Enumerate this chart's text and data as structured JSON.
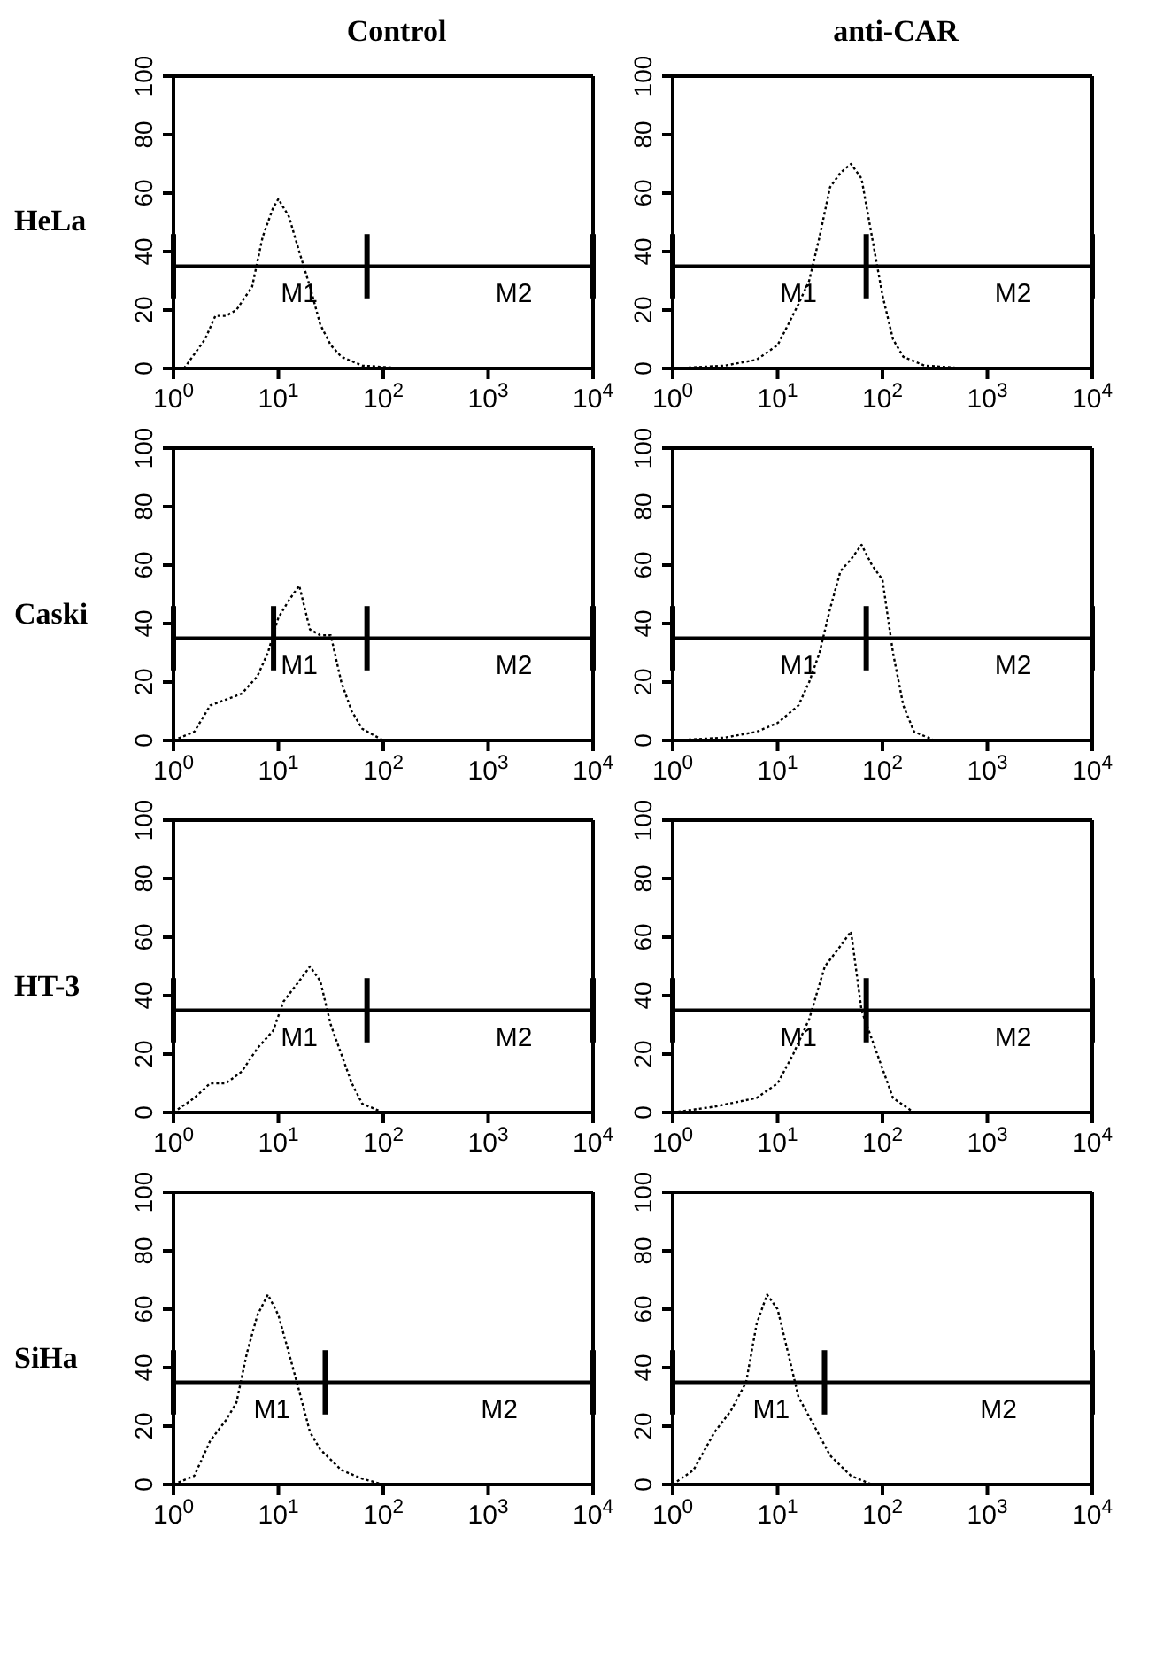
{
  "chart_data": [
    {
      "type": "line",
      "title": "Control",
      "ylabel": "HeLa",
      "log": "x",
      "xlim": [
        1,
        10000
      ],
      "ylim": [
        0,
        100
      ],
      "xticks": [
        {
          "value": 1,
          "label": "10$^{0}$"
        },
        {
          "value": 10,
          "label": "10$^{1}$"
        },
        {
          "value": 100,
          "label": "10$^{2}$"
        },
        {
          "value": 1000,
          "label": "10$^{3}$"
        },
        {
          "value": 10000,
          "label": "10$^{4}$"
        }
      ],
      "yticks": [
        0,
        20,
        40,
        60,
        80,
        100
      ],
      "line_style": "dotted",
      "marker": "none",
      "series": [
        {
          "color": "#000000",
          "x": [
            1.26,
            2,
            2.51,
            3.16,
            3.98,
            5.62,
            7.08,
            8.91,
            10,
            12.6,
            15.8,
            20,
            25.1,
            31.6,
            39.8,
            63.1,
            158,
            10000
          ],
          "values": [
            0,
            10,
            18,
            18,
            20,
            28,
            45,
            55,
            58,
            52,
            40,
            28,
            15,
            8,
            4,
            1,
            0,
            0
          ]
        }
      ],
      "ref_lines": [
        {
          "axis": "y",
          "value": 35
        },
        {
          "axis": "x",
          "value": 1
        },
        {
          "axis": "x",
          "value": 70
        },
        {
          "axis": "x",
          "value": 10000
        }
      ],
      "annotations": [
        "M1",
        "M2"
      ]
    },
    {
      "type": "line",
      "title": "anti-CAR",
      "log": "x",
      "xlim": [
        1,
        10000
      ],
      "ylim": [
        0,
        100
      ],
      "xticks": [
        {
          "value": 1,
          "label": "10$^{0}$"
        },
        {
          "value": 10,
          "label": "10$^{1}$"
        },
        {
          "value": 100,
          "label": "10$^{2}$"
        },
        {
          "value": 1000,
          "label": "10$^{3}$"
        },
        {
          "value": 10000,
          "label": "10$^{4}$"
        }
      ],
      "yticks": [
        0,
        20,
        40,
        60,
        80,
        100
      ],
      "line_style": "dotted",
      "marker": "none",
      "series": [
        {
          "color": "#000000",
          "x": [
            1,
            3.16,
            6.31,
            10,
            12.6,
            15.8,
            20,
            25.1,
            31.6,
            39.8,
            50.1,
            63.1,
            79.4,
            100,
            126,
            158,
            251,
            631,
            10000
          ],
          "values": [
            0,
            1,
            3,
            8,
            15,
            22,
            30,
            45,
            62,
            67,
            70,
            65,
            45,
            25,
            10,
            4,
            1,
            0,
            0
          ]
        }
      ],
      "ref_lines": [
        {
          "axis": "y",
          "value": 35
        },
        {
          "axis": "x",
          "value": 1
        },
        {
          "axis": "x",
          "value": 70
        },
        {
          "axis": "x",
          "value": 10000
        }
      ],
      "annotations": [
        "M1",
        "M2"
      ]
    },
    {
      "type": "line",
      "ylabel": "Caski",
      "log": "x",
      "xlim": [
        1,
        10000
      ],
      "ylim": [
        0,
        100
      ],
      "xticks": [
        {
          "value": 1,
          "label": "10$^{0}$"
        },
        {
          "value": 10,
          "label": "10$^{1}$"
        },
        {
          "value": 100,
          "label": "10$^{2}$"
        },
        {
          "value": 1000,
          "label": "10$^{3}$"
        },
        {
          "value": 10000,
          "label": "10$^{4}$"
        }
      ],
      "yticks": [
        0,
        20,
        40,
        60,
        80,
        100
      ],
      "line_style": "dotted",
      "marker": "none",
      "series": [
        {
          "color": "#000000",
          "x": [
            1,
            1.58,
            2.24,
            3.16,
            4.47,
            6.31,
            7.94,
            10,
            12.6,
            15.8,
            20,
            25.1,
            31.6,
            39.8,
            50.1,
            63.1,
            100,
            10000
          ],
          "values": [
            0,
            3,
            12,
            14,
            16,
            22,
            30,
            42,
            48,
            53,
            38,
            36,
            36,
            20,
            10,
            4,
            0,
            0
          ]
        }
      ],
      "ref_lines": [
        {
          "axis": "y",
          "value": 35
        },
        {
          "axis": "x",
          "value": 1
        },
        {
          "axis": "x",
          "value": 70
        },
        {
          "axis": "x",
          "value": 10000
        },
        {
          "axis": "x",
          "value": 9
        }
      ],
      "annotations": [
        "M1",
        "M2"
      ]
    },
    {
      "type": "line",
      "log": "x",
      "xlim": [
        1,
        10000
      ],
      "ylim": [
        0,
        100
      ],
      "xticks": [
        {
          "value": 1,
          "label": "10$^{0}$"
        },
        {
          "value": 10,
          "label": "10$^{1}$"
        },
        {
          "value": 100,
          "label": "10$^{2}$"
        },
        {
          "value": 1000,
          "label": "10$^{3}$"
        },
        {
          "value": 10000,
          "label": "10$^{4}$"
        }
      ],
      "yticks": [
        0,
        20,
        40,
        60,
        80,
        100
      ],
      "line_style": "dotted",
      "marker": "none",
      "series": [
        {
          "color": "#000000",
          "x": [
            1,
            3.16,
            6.31,
            10,
            15.8,
            20,
            25.1,
            31.6,
            39.8,
            50.1,
            63.1,
            79.4,
            100,
            126,
            158,
            200,
            316,
            10000
          ],
          "values": [
            0,
            1,
            3,
            6,
            12,
            20,
            30,
            45,
            58,
            62,
            67,
            60,
            55,
            30,
            12,
            3,
            0,
            0
          ]
        }
      ],
      "ref_lines": [
        {
          "axis": "y",
          "value": 35
        },
        {
          "axis": "x",
          "value": 1
        },
        {
          "axis": "x",
          "value": 70
        },
        {
          "axis": "x",
          "value": 10000
        }
      ],
      "annotations": [
        "M1",
        "M2"
      ]
    },
    {
      "type": "line",
      "ylabel": "HT-3",
      "log": "x",
      "xlim": [
        1,
        10000
      ],
      "ylim": [
        0,
        100
      ],
      "xticks": [
        {
          "value": 1,
          "label": "10$^{0}$"
        },
        {
          "value": 10,
          "label": "10$^{1}$"
        },
        {
          "value": 100,
          "label": "10$^{2}$"
        },
        {
          "value": 1000,
          "label": "10$^{3}$"
        },
        {
          "value": 10000,
          "label": "10$^{4}$"
        }
      ],
      "yticks": [
        0,
        20,
        40,
        60,
        80,
        100
      ],
      "line_style": "dotted",
      "marker": "none",
      "series": [
        {
          "color": "#000000",
          "x": [
            1,
            1.58,
            2.24,
            3.16,
            4.47,
            6.31,
            8.91,
            11.2,
            15.8,
            20,
            25.1,
            31.6,
            39.8,
            50.1,
            63.1,
            100,
            10000
          ],
          "values": [
            0,
            5,
            10,
            10,
            14,
            22,
            28,
            38,
            45,
            50,
            45,
            30,
            20,
            10,
            3,
            0,
            0
          ]
        }
      ],
      "ref_lines": [
        {
          "axis": "y",
          "value": 35
        },
        {
          "axis": "x",
          "value": 1
        },
        {
          "axis": "x",
          "value": 70
        },
        {
          "axis": "x",
          "value": 10000
        }
      ],
      "annotations": [
        "M1",
        "M2"
      ]
    },
    {
      "type": "line",
      "log": "x",
      "xlim": [
        1,
        10000
      ],
      "ylim": [
        0,
        100
      ],
      "xticks": [
        {
          "value": 1,
          "label": "10$^{0}$"
        },
        {
          "value": 10,
          "label": "10$^{1}$"
        },
        {
          "value": 100,
          "label": "10$^{2}$"
        },
        {
          "value": 1000,
          "label": "10$^{3}$"
        },
        {
          "value": 10000,
          "label": "10$^{4}$"
        }
      ],
      "yticks": [
        0,
        20,
        40,
        60,
        80,
        100
      ],
      "line_style": "dotted",
      "marker": "none",
      "series": [
        {
          "color": "#000000",
          "x": [
            1,
            2.51,
            6.31,
            10,
            14.1,
            20,
            28.2,
            39.8,
            50.1,
            63.1,
            79.4,
            100,
            126,
            200,
            10000
          ],
          "values": [
            0,
            2,
            5,
            10,
            20,
            32,
            50,
            57,
            62,
            35,
            25,
            15,
            5,
            0,
            0
          ]
        }
      ],
      "ref_lines": [
        {
          "axis": "y",
          "value": 35
        },
        {
          "axis": "x",
          "value": 1
        },
        {
          "axis": "x",
          "value": 70
        },
        {
          "axis": "x",
          "value": 10000
        }
      ],
      "annotations": [
        "M1",
        "M2"
      ]
    },
    {
      "type": "line",
      "ylabel": "SiHa",
      "log": "x",
      "xlim": [
        1,
        10000
      ],
      "ylim": [
        0,
        100
      ],
      "xticks": [
        {
          "value": 1,
          "label": "10$^{0}$"
        },
        {
          "value": 10,
          "label": "10$^{1}$"
        },
        {
          "value": 100,
          "label": "10$^{2}$"
        },
        {
          "value": 1000,
          "label": "10$^{3}$"
        },
        {
          "value": 10000,
          "label": "10$^{4}$"
        }
      ],
      "yticks": [
        0,
        20,
        40,
        60,
        80,
        100
      ],
      "line_style": "dotted",
      "marker": "none",
      "series": [
        {
          "color": "#000000",
          "x": [
            1,
            1.58,
            2.24,
            3.16,
            3.98,
            5.01,
            6.31,
            7.94,
            10,
            12.6,
            15.8,
            20,
            25.1,
            39.8,
            63.1,
            100,
            10000
          ],
          "values": [
            0,
            3,
            15,
            22,
            28,
            45,
            58,
            65,
            58,
            45,
            32,
            18,
            12,
            5,
            2,
            0,
            0
          ]
        }
      ],
      "ref_lines": [
        {
          "axis": "y",
          "value": 35
        },
        {
          "axis": "x",
          "value": 1
        },
        {
          "axis": "x",
          "value": 28
        },
        {
          "axis": "x",
          "value": 10000
        }
      ],
      "annotations": [
        "M1",
        "M2"
      ]
    },
    {
      "type": "line",
      "log": "x",
      "xlim": [
        1,
        10000
      ],
      "ylim": [
        0,
        100
      ],
      "xticks": [
        {
          "value": 1,
          "label": "10$^{0}$"
        },
        {
          "value": 10,
          "label": "10$^{1}$"
        },
        {
          "value": 100,
          "label": "10$^{2}$"
        },
        {
          "value": 1000,
          "label": "10$^{3}$"
        },
        {
          "value": 10000,
          "label": "10$^{4}$"
        }
      ],
      "yticks": [
        0,
        20,
        40,
        60,
        80,
        100
      ],
      "line_style": "dotted",
      "marker": "none",
      "series": [
        {
          "color": "#000000",
          "x": [
            1,
            1.58,
            2.51,
            3.55,
            5.01,
            6.31,
            7.94,
            10,
            12.6,
            15.8,
            22.4,
            31.6,
            50.1,
            79.4,
            10000
          ],
          "values": [
            0,
            5,
            18,
            25,
            35,
            55,
            65,
            60,
            45,
            30,
            20,
            10,
            3,
            0,
            0
          ]
        }
      ],
      "ref_lines": [
        {
          "axis": "y",
          "value": 35
        },
        {
          "axis": "x",
          "value": 1
        },
        {
          "axis": "x",
          "value": 28
        },
        {
          "axis": "x",
          "value": 10000
        }
      ],
      "annotations": [
        "M1",
        "M2"
      ]
    }
  ]
}
